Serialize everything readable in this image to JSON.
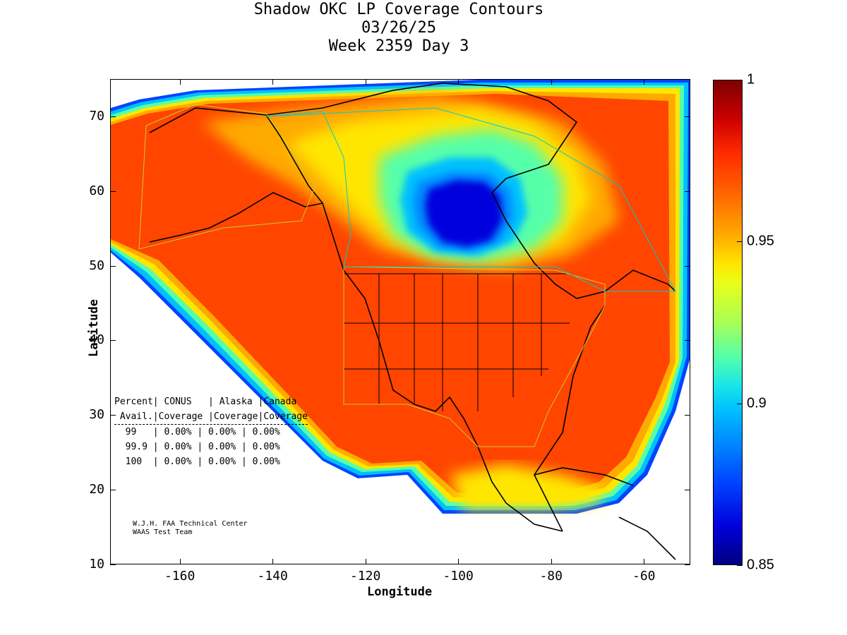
{
  "title": {
    "line1": "Shadow OKC LP Coverage Contours",
    "line2": "03/26/25",
    "line3": "Week 2359 Day 3"
  },
  "axes": {
    "xlabel": "Longitude",
    "ylabel": "Latitude",
    "xlim": [
      -175,
      -50
    ],
    "ylim": [
      10,
      75
    ],
    "xticks": [
      "-160",
      "-140",
      "-120",
      "-100",
      "-80",
      "-60"
    ],
    "xtick_values": [
      -160,
      -140,
      -120,
      -100,
      -80,
      -60
    ],
    "yticks": [
      "10",
      "20",
      "30",
      "40",
      "50",
      "60",
      "70"
    ],
    "ytick_values": [
      10,
      20,
      30,
      40,
      50,
      60,
      70
    ]
  },
  "colorbar": {
    "labels": [
      "1",
      "0.95",
      "0.9",
      "0.85"
    ],
    "values": [
      1.0,
      0.95,
      0.9,
      0.85
    ],
    "range": [
      0.85,
      1.0
    ],
    "colormap": "jet"
  },
  "coverage_table": {
    "header1": "Percent| CONUS   | Alaska |Canada",
    "header2": " Avail.|Coverage |Coverage|Coverage",
    "rows": [
      "  99   | 0.00% | 0.00% | 0.00%",
      "  99.9 | 0.00% | 0.00% | 0.00%",
      "  100  | 0.00% | 0.00% | 0.00%"
    ]
  },
  "credit": {
    "line1": "W.J.H. FAA Technical Center",
    "line2": "WAAS Test Team"
  },
  "colors": {
    "dominant": "#ff4500",
    "low_availability": "#0000dd",
    "background": "#ffffff"
  }
}
